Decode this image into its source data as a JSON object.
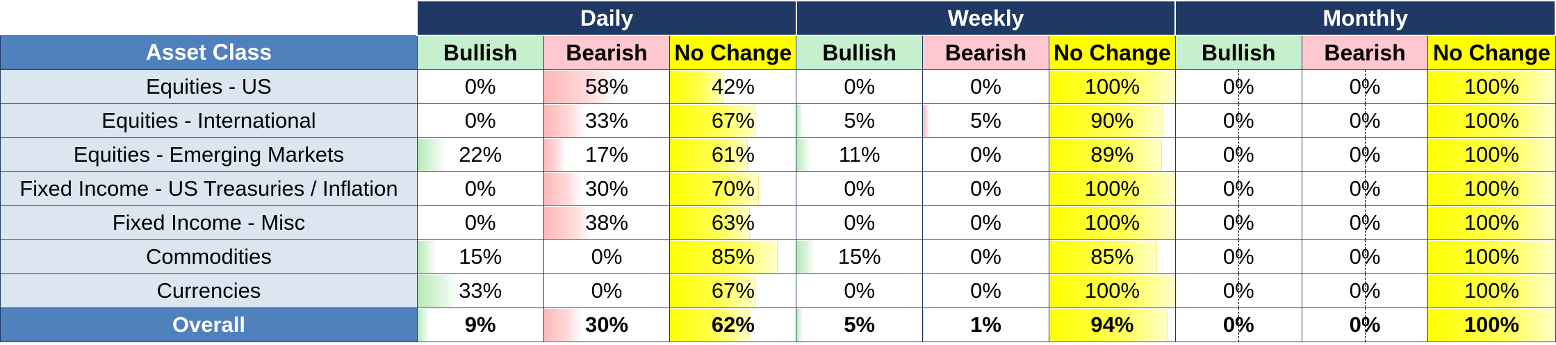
{
  "header": {
    "periods": [
      "Daily",
      "Weekly",
      "Monthly"
    ],
    "asset_class_label": "Asset Class",
    "subheaders": [
      "Bullish",
      "Bearish",
      "No Change"
    ]
  },
  "rows": [
    {
      "asset": "Equities - US",
      "values": [
        "0%",
        "58%",
        "42%",
        "0%",
        "0%",
        "100%",
        "0%",
        "0%",
        "100%"
      ],
      "levels": [
        0,
        58,
        42,
        0,
        0,
        100,
        0,
        0,
        100
      ]
    },
    {
      "asset": "Equities - International",
      "values": [
        "0%",
        "33%",
        "67%",
        "5%",
        "5%",
        "90%",
        "0%",
        "0%",
        "100%"
      ],
      "levels": [
        0,
        33,
        67,
        5,
        5,
        90,
        0,
        0,
        100
      ]
    },
    {
      "asset": "Equities - Emerging Markets",
      "values": [
        "22%",
        "17%",
        "61%",
        "11%",
        "0%",
        "89%",
        "0%",
        "0%",
        "100%"
      ],
      "levels": [
        22,
        17,
        61,
        11,
        0,
        89,
        0,
        0,
        100
      ]
    },
    {
      "asset": "Fixed Income - US Treasuries / Inflation",
      "values": [
        "0%",
        "30%",
        "70%",
        "0%",
        "0%",
        "100%",
        "0%",
        "0%",
        "100%"
      ],
      "levels": [
        0,
        30,
        70,
        0,
        0,
        100,
        0,
        0,
        100
      ]
    },
    {
      "asset": "Fixed Income - Misc",
      "values": [
        "0%",
        "38%",
        "63%",
        "0%",
        "0%",
        "100%",
        "0%",
        "0%",
        "100%"
      ],
      "levels": [
        0,
        38,
        63,
        0,
        0,
        100,
        0,
        0,
        100
      ]
    },
    {
      "asset": "Commodities",
      "values": [
        "15%",
        "0%",
        "85%",
        "15%",
        "0%",
        "85%",
        "0%",
        "0%",
        "100%"
      ],
      "levels": [
        15,
        0,
        85,
        15,
        0,
        85,
        0,
        0,
        100
      ]
    },
    {
      "asset": "Currencies",
      "values": [
        "33%",
        "0%",
        "67%",
        "0%",
        "0%",
        "100%",
        "0%",
        "0%",
        "100%"
      ],
      "levels": [
        33,
        0,
        67,
        0,
        0,
        100,
        0,
        0,
        100
      ]
    }
  ],
  "total": {
    "asset": "Overall",
    "values": [
      "9%",
      "30%",
      "62%",
      "5%",
      "1%",
      "94%",
      "0%",
      "0%",
      "100%"
    ],
    "levels": [
      9,
      30,
      62,
      5,
      1,
      94,
      0,
      0,
      100
    ]
  },
  "colors": {
    "period_header_bg": "#203864",
    "asset_header_bg": "#4f81bd",
    "asset_cell_bg": "#dce6f1",
    "bullish": "#c6efce",
    "bearish": "#ffc7ce",
    "no_change": "#ffff00"
  }
}
